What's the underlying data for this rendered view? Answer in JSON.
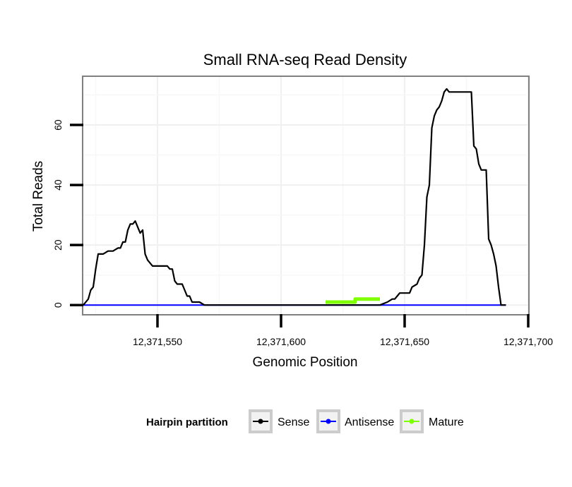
{
  "chart_data": {
    "type": "line",
    "title": "Small RNA-seq Read Density",
    "xlabel": "Genomic Position",
    "ylabel": "Total Reads",
    "xlim": [
      12371520,
      12371700
    ],
    "ylim": [
      -3,
      76
    ],
    "xticks": [
      12371550,
      12371600,
      12371650,
      12371700
    ],
    "xtick_labels": [
      "12,371,550",
      "12,371,600",
      "12,371,650",
      "12,371,700"
    ],
    "yticks": [
      0,
      20,
      40,
      60
    ],
    "ytick_labels": [
      "0",
      "20",
      "40",
      "60"
    ],
    "grid": true,
    "legend": {
      "title": "Hairpin partition",
      "position": "bottom",
      "entries": [
        "Sense",
        "Antisense",
        "Mature"
      ]
    },
    "series": [
      {
        "name": "Sense",
        "color": "#000000",
        "x": [
          12371520,
          12371522,
          12371523,
          12371524,
          12371525,
          12371526,
          12371527,
          12371528,
          12371530,
          12371531,
          12371532,
          12371534,
          12371535,
          12371536,
          12371537,
          12371538,
          12371539,
          12371540,
          12371541,
          12371542,
          12371543,
          12371544,
          12371545,
          12371546,
          12371548,
          12371554,
          12371555,
          12371556,
          12371557,
          12371558,
          12371560,
          12371561,
          12371562,
          12371563,
          12371564,
          12371567,
          12371569,
          12371640,
          12371643,
          12371645,
          12371646,
          12371647,
          12371648,
          12371652,
          12371653,
          12371655,
          12371656,
          12371657,
          12371658,
          12371659,
          12371660,
          12371661,
          12371662,
          12371663,
          12371664,
          12371665,
          12371666,
          12371667,
          12371668,
          12371669,
          12371670,
          12371671,
          12371677,
          12371678,
          12371679,
          12371680,
          12371681,
          12371683,
          12371684,
          12371685,
          12371686,
          12371687,
          12371688,
          12371689,
          12371691
        ],
        "values": [
          0,
          2,
          5,
          6,
          12,
          17,
          17,
          17,
          18,
          18,
          18,
          19,
          19,
          21,
          21,
          25,
          27,
          27,
          28,
          26,
          24,
          25,
          17,
          15,
          13,
          13,
          12,
          12,
          8,
          7,
          7,
          5,
          3,
          3,
          1,
          1,
          0,
          0,
          1,
          2,
          2,
          3,
          4,
          4,
          6,
          7,
          9,
          10,
          20,
          36,
          40,
          59,
          63,
          65,
          66,
          68,
          71,
          72,
          71,
          71,
          71,
          71,
          71,
          53,
          52,
          47,
          45,
          45,
          22,
          20,
          17,
          13,
          6,
          0,
          0
        ]
      },
      {
        "name": "Antisense",
        "color": "#0000ff",
        "x": [
          12371520,
          12371691
        ],
        "values": [
          0,
          0
        ]
      },
      {
        "name": "Mature",
        "color": "#7fff00",
        "x": [
          12371618,
          12371630,
          12371630,
          12371640
        ],
        "values": [
          1,
          1,
          2,
          2
        ]
      }
    ]
  }
}
